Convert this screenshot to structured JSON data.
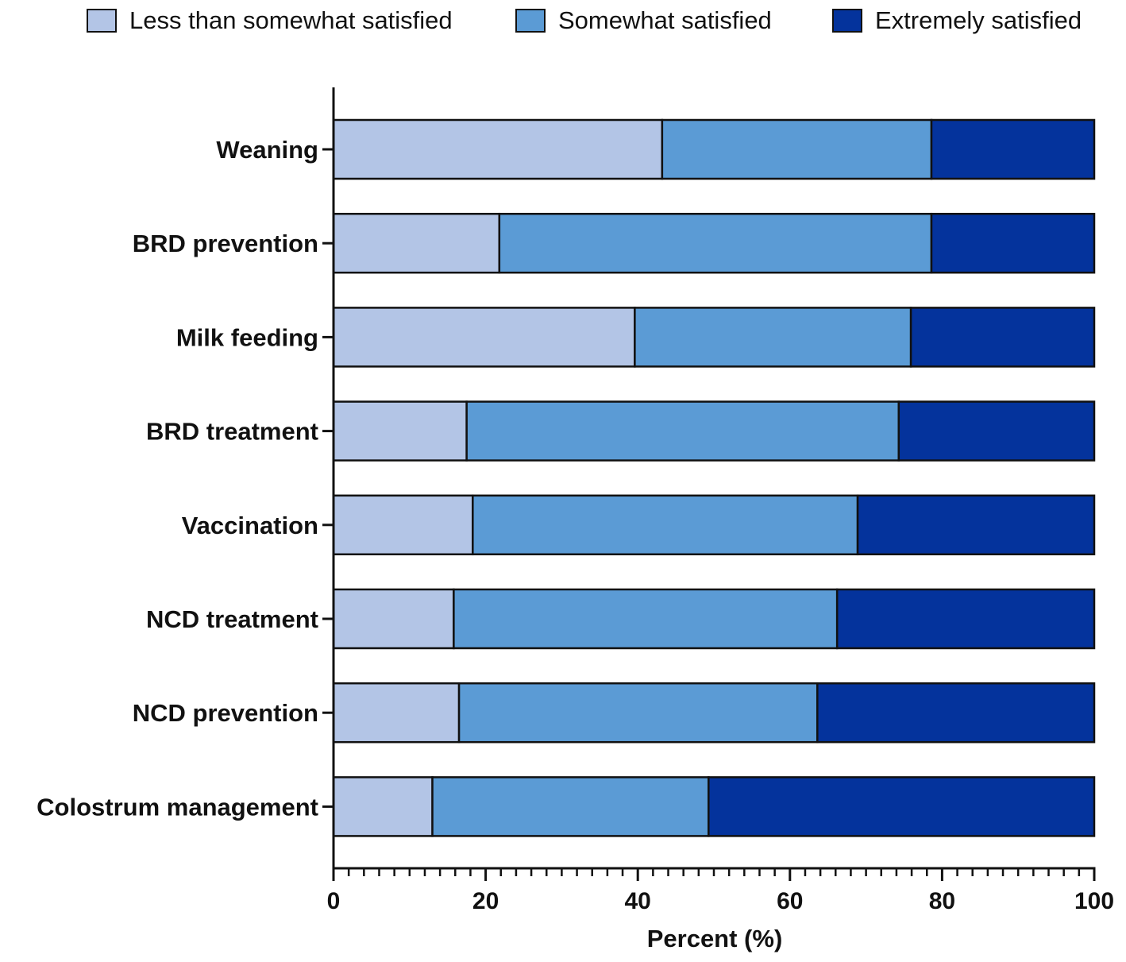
{
  "chart_data": {
    "type": "bar",
    "orientation": "horizontal",
    "stacked": true,
    "title": "",
    "xlabel": "Percent (%)",
    "ylabel": "",
    "xlim": [
      0,
      100
    ],
    "x_ticks": [
      "0",
      "20",
      "40",
      "60",
      "80",
      "100"
    ],
    "legend_position": "top",
    "categories": [
      "Weaning",
      "BRD prevention",
      "Milk feeding",
      "BRD treatment",
      "Vaccination",
      "NCD treatment",
      "NCD prevention",
      "Colostrum management"
    ],
    "series": [
      {
        "name": "Less than somewhat satisfied",
        "color": "#b3c5e6",
        "values": [
          43.2,
          21.8,
          39.6,
          17.5,
          18.3,
          15.8,
          16.5,
          13
        ]
      },
      {
        "name": "Somewhat satisfied",
        "color": "#5b9bd5",
        "values": [
          35.4,
          56.8,
          36.3,
          56.8,
          50.6,
          50.4,
          47.1,
          36.3
        ]
      },
      {
        "name": "Extremely satisfied",
        "color": "#04339c",
        "values": [
          21.4,
          21.4,
          24.1,
          25.7,
          31.1,
          33.8,
          36.4,
          50.7
        ]
      }
    ]
  }
}
